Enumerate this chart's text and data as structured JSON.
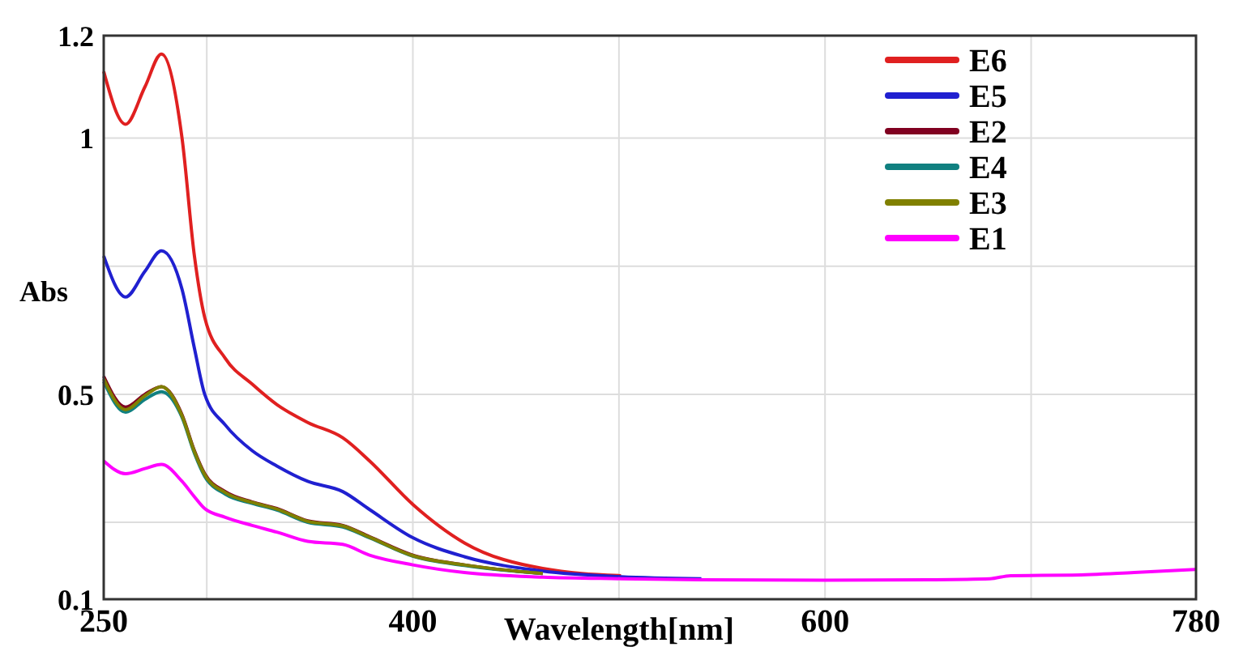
{
  "chart_data": {
    "type": "line",
    "xlabel": "Wavelength[nm]",
    "ylabel": "Abs",
    "xlim": [
      250,
      780
    ],
    "xticks": [
      250,
      {
        "value": 300,
        "label": null
      },
      400,
      {
        "value": 500,
        "label": null
      },
      600,
      {
        "value": 700,
        "label": null
      },
      780
    ],
    "ylim": [
      0.1,
      1.2
    ],
    "yticks": [
      0.1,
      {
        "value": 0.25,
        "label": null
      },
      0.5,
      {
        "value": 0.75,
        "label": null
      },
      1,
      1.2
    ],
    "grid": true,
    "legend": "top right",
    "marker": "none",
    "line_style": "solid",
    "x": [
      250,
      260.6,
      270,
      278,
      288,
      294,
      299,
      309,
      322,
      334,
      349,
      366,
      379,
      400,
      425,
      463,
      501,
      540,
      600,
      650,
      680,
      690,
      720,
      750,
      780
    ],
    "series": [
      {
        "name": "E6",
        "color": "#e02020",
        "values": [
          1.13,
          1.027,
          1.1,
          1.164,
          1.0,
          0.77,
          0.65,
          0.57,
          0.52,
          0.48,
          0.445,
          0.415,
          0.37,
          0.285,
          0.21,
          0.16,
          0.146,
          null,
          null,
          null,
          null,
          null,
          null,
          null,
          null
        ]
      },
      {
        "name": "E5",
        "color": "#2020d0",
        "values": [
          0.77,
          0.69,
          0.74,
          0.78,
          0.705,
          0.59,
          0.5,
          0.44,
          0.39,
          0.36,
          0.33,
          0.31,
          0.275,
          0.22,
          0.183,
          0.155,
          0.144,
          0.14,
          null,
          null,
          null,
          null,
          null,
          null,
          null
        ]
      },
      {
        "name": "E2",
        "color": "#800020",
        "values": [
          0.535,
          0.475,
          0.5,
          0.515,
          0.46,
          0.39,
          0.345,
          0.31,
          0.29,
          0.277,
          0.253,
          0.244,
          0.222,
          0.186,
          0.167,
          0.15,
          null,
          null,
          null,
          null,
          null,
          null,
          null,
          null,
          null
        ]
      },
      {
        "name": "E4",
        "color": "#108080",
        "values": [
          0.525,
          0.465,
          0.49,
          0.505,
          0.455,
          0.385,
          0.34,
          0.305,
          0.287,
          0.274,
          0.25,
          0.241,
          0.22,
          0.184,
          0.166,
          0.15,
          null,
          null,
          null,
          null,
          null,
          null,
          null,
          null,
          null
        ]
      },
      {
        "name": "E3",
        "color": "#808000",
        "values": [
          0.53,
          0.47,
          0.497,
          0.515,
          0.458,
          0.388,
          0.343,
          0.308,
          0.289,
          0.276,
          0.252,
          0.243,
          0.221,
          0.185,
          0.167,
          0.15,
          null,
          null,
          null,
          null,
          null,
          null,
          null,
          null,
          null
        ]
      },
      {
        "name": "E1",
        "color": "#ff00ff",
        "values": [
          0.37,
          0.345,
          0.355,
          0.363,
          0.33,
          0.3,
          0.277,
          0.26,
          0.244,
          0.231,
          0.213,
          0.207,
          0.186,
          0.167,
          0.152,
          0.143,
          0.14,
          0.138,
          0.137,
          0.138,
          0.14,
          0.146,
          0.147,
          0.152,
          0.158
        ]
      }
    ]
  }
}
